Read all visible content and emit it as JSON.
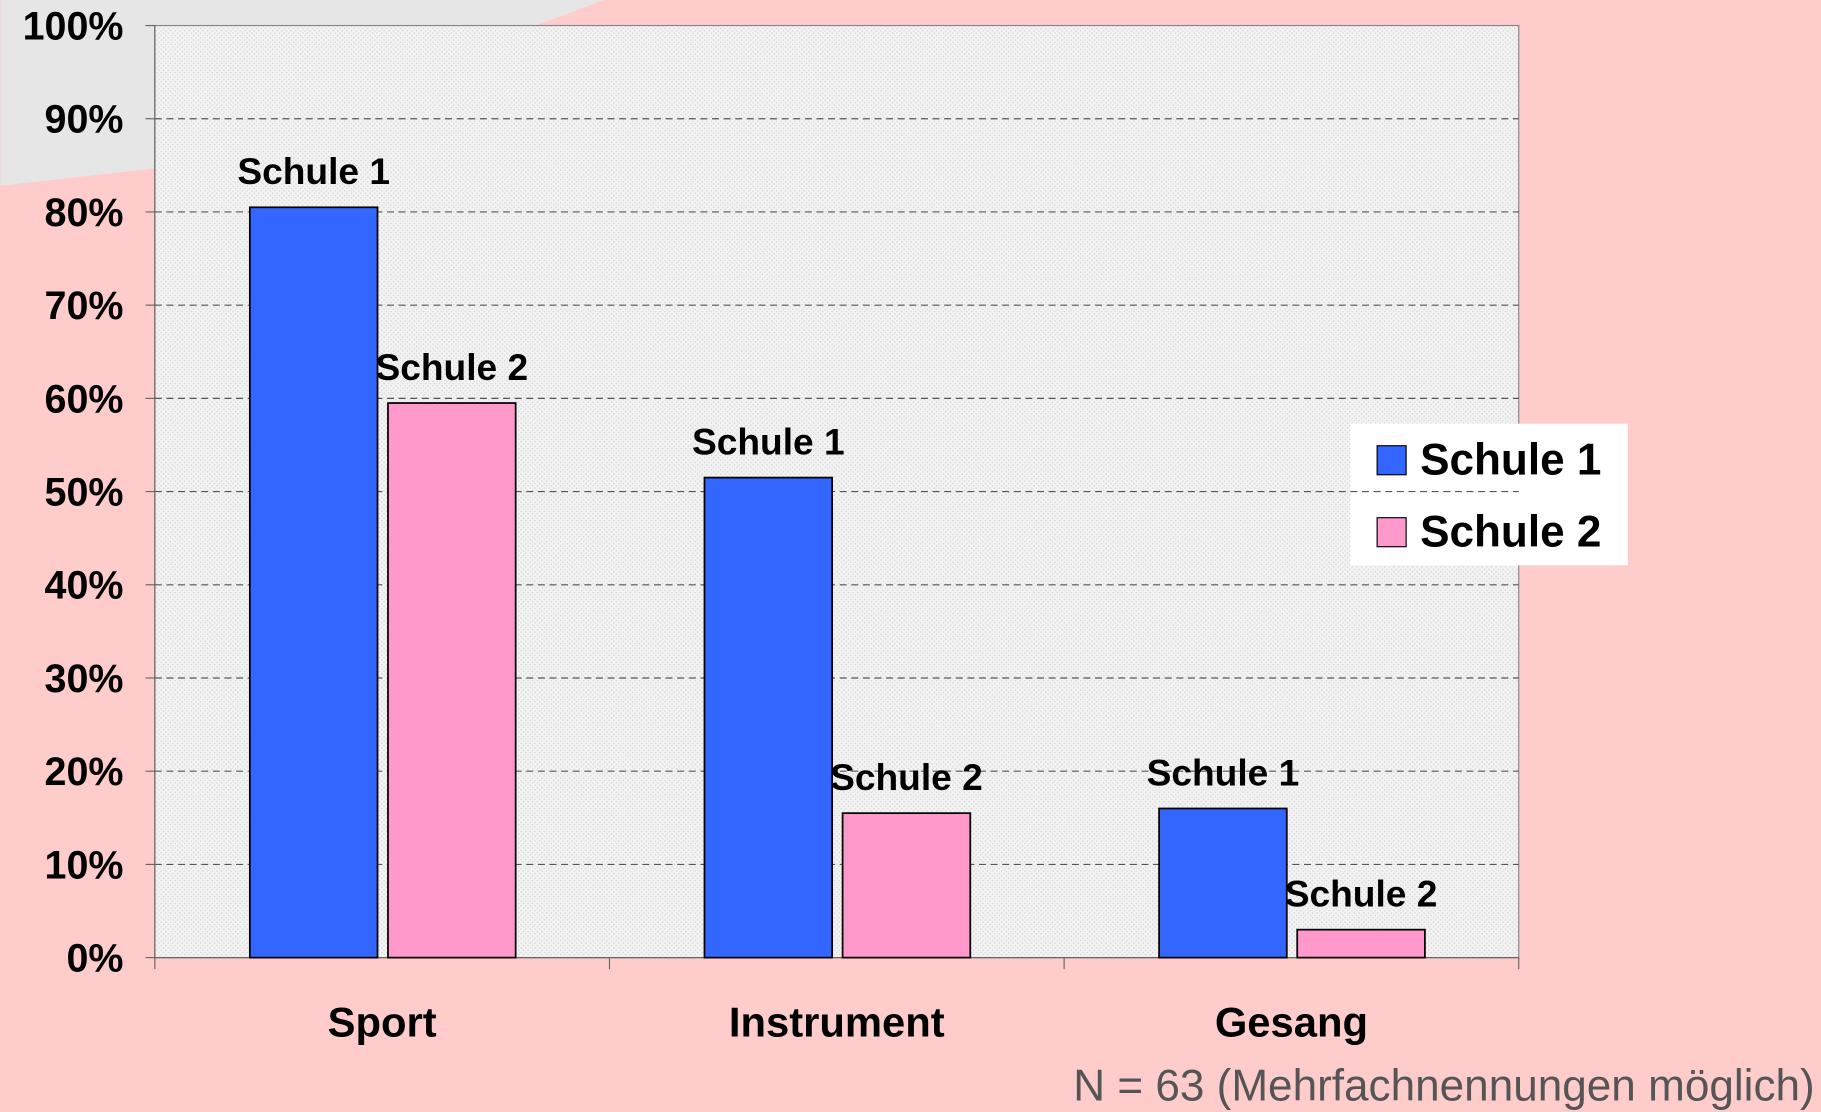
{
  "chart_data": {
    "type": "bar",
    "categories": [
      "Sport",
      "Instrument",
      "Gesang"
    ],
    "series": [
      {
        "name": "Schule 1",
        "color": "#3366ff",
        "values": [
          80.5,
          51.5,
          16
        ]
      },
      {
        "name": "Schule 2",
        "color": "#ff99cc",
        "values": [
          59.5,
          15.5,
          3
        ]
      }
    ],
    "ylim": [
      0,
      100
    ],
    "yticks": [
      {
        "value": 0,
        "label": "0%"
      },
      {
        "value": 10,
        "label": "10%"
      },
      {
        "value": 20,
        "label": "20%"
      },
      {
        "value": 30,
        "label": "30%"
      },
      {
        "value": 40,
        "label": "40%"
      },
      {
        "value": 50,
        "label": "50%"
      },
      {
        "value": 60,
        "label": "60%"
      },
      {
        "value": 70,
        "label": "70%"
      },
      {
        "value": 80,
        "label": "80%"
      },
      {
        "value": 90,
        "label": "90%"
      },
      {
        "value": 100,
        "label": "100%"
      }
    ],
    "grid": true,
    "legend": "right",
    "note": "N = 63 (Mehrfachnennungen möglich)"
  }
}
